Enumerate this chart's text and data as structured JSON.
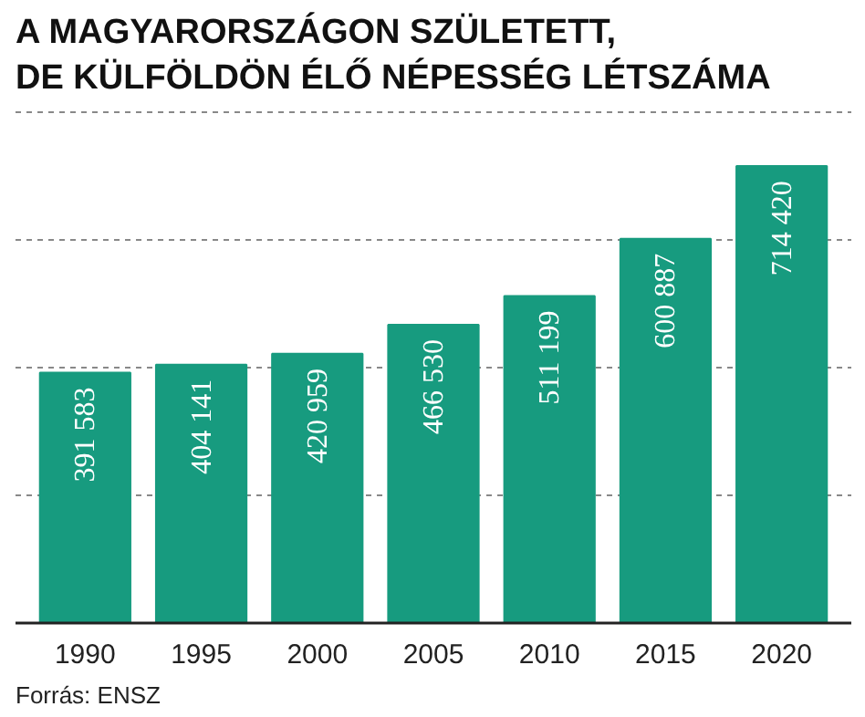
{
  "chart_data": {
    "type": "bar",
    "title": "A MAGYARORSZÁGON SZÜLETETT,\nDE KÜLFÖLDÖN ÉLŐ NÉPESSÉG LÉTSZÁMA",
    "categories": [
      "1990",
      "1995",
      "2000",
      "2005",
      "2010",
      "2015",
      "2020"
    ],
    "values": [
      391583,
      404141,
      420959,
      466530,
      511199,
      600887,
      714420
    ],
    "value_labels": [
      "391 583",
      "404 141",
      "420 959",
      "466 530",
      "511 199",
      "600 887",
      "714 420"
    ],
    "color": "#179b7f",
    "grid": "y",
    "tick_labels": "x",
    "annotations": [
      "Forrás: ENSZ"
    ]
  }
}
